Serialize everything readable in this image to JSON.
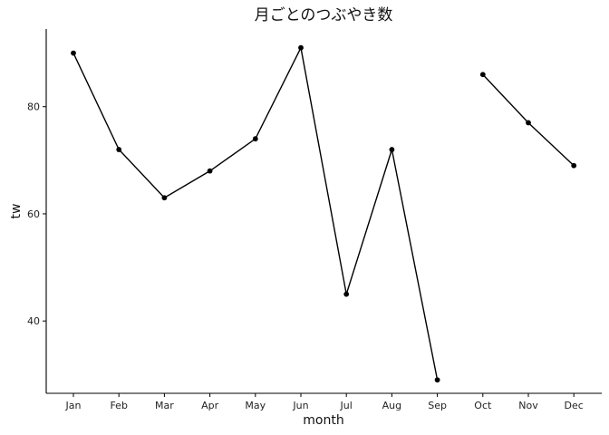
{
  "chart_data": {
    "type": "line",
    "title": "月ごとのつぶやき数",
    "xlabel": "month",
    "ylabel": "tw",
    "categories": [
      "Jan",
      "Feb",
      "Mar",
      "Apr",
      "May",
      "Jun",
      "Jul",
      "Aug",
      "Sep",
      "Oct",
      "Nov",
      "Dec"
    ],
    "values": [
      90,
      72,
      63,
      68,
      74,
      91,
      45,
      72,
      29,
      86,
      77,
      69
    ],
    "segments": [
      [
        0,
        8
      ],
      [
        9,
        11
      ]
    ],
    "y_ticks": [
      40,
      60,
      80
    ],
    "ylim": [
      26.5,
      94.5
    ],
    "grid": false,
    "legend": "none",
    "colors": {
      "line": "#000000",
      "point": "#000000",
      "axis": "#000000"
    }
  }
}
